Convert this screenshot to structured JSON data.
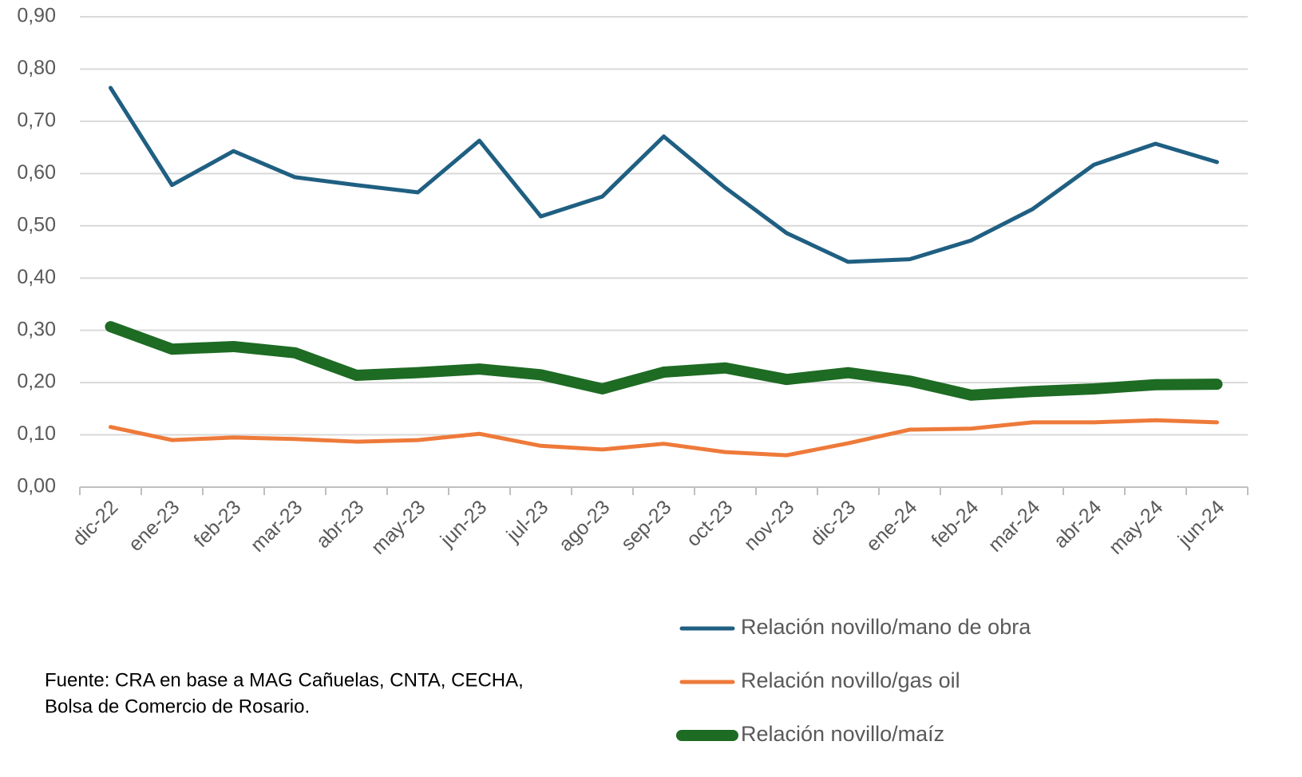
{
  "chart_data": {
    "type": "line",
    "categories": [
      "dic-22",
      "ene-23",
      "feb-23",
      "mar-23",
      "abr-23",
      "may-23",
      "jun-23",
      "jul-23",
      "ago-23",
      "sep-23",
      "oct-23",
      "nov-23",
      "dic-23",
      "ene-24",
      "feb-24",
      "mar-24",
      "abr-24",
      "may-24",
      "jun-24"
    ],
    "series": [
      {
        "name": "Relación novillo/mano de obra",
        "color": "#1f5f82",
        "width": 5,
        "values": [
          0.764,
          0.578,
          0.643,
          0.593,
          0.578,
          0.564,
          0.663,
          0.518,
          0.556,
          0.671,
          0.573,
          0.486,
          0.431,
          0.436,
          0.472,
          0.532,
          0.617,
          0.657,
          0.622
        ]
      },
      {
        "name": "Relación novillo/gas oil",
        "color": "#ee7a3a",
        "width": 5,
        "values": [
          0.115,
          0.09,
          0.095,
          0.092,
          0.087,
          0.09,
          0.102,
          0.079,
          0.072,
          0.083,
          0.067,
          0.061,
          0.084,
          0.11,
          0.112,
          0.124,
          0.124,
          0.128,
          0.124
        ]
      },
      {
        "name": "Relación novillo/maíz",
        "color": "#1e6b24",
        "width": 14,
        "values": [
          0.307,
          0.264,
          0.269,
          0.257,
          0.214,
          0.219,
          0.226,
          0.215,
          0.188,
          0.22,
          0.228,
          0.206,
          0.219,
          0.203,
          0.176,
          0.183,
          0.188,
          0.196,
          0.197
        ]
      }
    ],
    "ylim": [
      0,
      0.9
    ],
    "yticks": [
      {
        "value": 0,
        "label": "0,00"
      },
      {
        "value": 0.1,
        "label": "0,10"
      },
      {
        "value": 0.2,
        "label": "0,20"
      },
      {
        "value": 0.3,
        "label": "0,30"
      },
      {
        "value": 0.4,
        "label": "0,40"
      },
      {
        "value": 0.5,
        "label": "0,50"
      },
      {
        "value": 0.6,
        "label": "0,60"
      },
      {
        "value": 0.7,
        "label": "0,70"
      },
      {
        "value": 0.8,
        "label": "0,80"
      },
      {
        "value": 0.9,
        "label": "0,90"
      }
    ],
    "grid": true,
    "legend": "bottom-right",
    "source": [
      "Fuente: CRA en base a MAG Cañuelas, CNTA, CECHA,",
      "Bolsa de Comercio de Rosario."
    ]
  }
}
